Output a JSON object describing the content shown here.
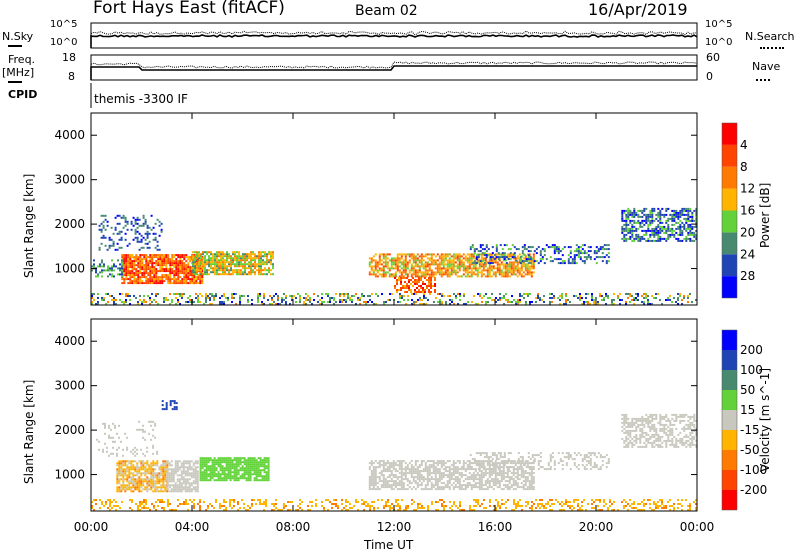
{
  "header": {
    "title": "Fort Hays East (fitACF)",
    "beam": "Beam 02",
    "date": "16/Apr/2019"
  },
  "summary": {
    "nsky_label": "N.Sky",
    "nsearch_label": "N.Search",
    "log_top": "10^5",
    "log_bottom": "10^0",
    "freq_label": "Freq.",
    "freq_unit": "[MHz]",
    "freq_top": "18",
    "freq_bottom": "8",
    "nave_label": "Nave",
    "nave_top": "60",
    "nave_bottom": "0",
    "cpid_label": "CPID",
    "cpid_value": "themis -3300 IF"
  },
  "chart_data": [
    {
      "type": "heatmap",
      "name": "power",
      "ylabel": "Slant Range [km]",
      "colorbar_label": "Power [dB]",
      "xlim": [
        0,
        24
      ],
      "ylim": [
        180,
        4500
      ],
      "yticks": [
        1000,
        2000,
        3000,
        4000
      ],
      "colorbar_ticks": [
        "4",
        "8",
        "12",
        "16",
        "20",
        "24",
        "28"
      ],
      "colors": [
        "#0000ff",
        "#1f44b4",
        "#478a70",
        "#63d23a",
        "#ffb400",
        "#ff7a00",
        "#ff4400",
        "#ff0000"
      ],
      "levels": [
        0,
        4,
        8,
        12,
        16,
        20,
        24,
        28,
        32
      ],
      "clusters": [
        {
          "t": [
            1.2,
            4.4
          ],
          "r": [
            650,
            1300
          ],
          "v": [
            18,
            32
          ],
          "d": 0.85
        },
        {
          "t": [
            4.0,
            7.2
          ],
          "r": [
            850,
            1350
          ],
          "v": [
            10,
            22
          ],
          "d": 0.8
        },
        {
          "t": [
            0.3,
            2.8
          ],
          "r": [
            1400,
            2200
          ],
          "v": [
            2,
            12
          ],
          "d": 0.25
        },
        {
          "t": [
            0.0,
            24.0
          ],
          "r": [
            180,
            420
          ],
          "v": [
            2,
            22
          ],
          "d": 0.3
        },
        {
          "t": [
            11.0,
            17.5
          ],
          "r": [
            800,
            1300
          ],
          "v": [
            14,
            26
          ],
          "d": 0.7
        },
        {
          "t": [
            12.0,
            13.6
          ],
          "r": [
            450,
            800
          ],
          "v": [
            18,
            30
          ],
          "d": 0.6
        },
        {
          "t": [
            15.0,
            20.5
          ],
          "r": [
            1100,
            1550
          ],
          "v": [
            2,
            14
          ],
          "d": 0.35
        },
        {
          "t": [
            21.0,
            24.0
          ],
          "r": [
            1600,
            2350
          ],
          "v": [
            2,
            14
          ],
          "d": 0.6
        },
        {
          "t": [
            0.0,
            1.2
          ],
          "r": [
            800,
            1200
          ],
          "v": [
            4,
            16
          ],
          "d": 0.45
        }
      ]
    },
    {
      "type": "heatmap",
      "name": "velocity",
      "ylabel": "Slant Range [km]",
      "colorbar_label": "Velocity [m s^-1]",
      "xlim": [
        0,
        24
      ],
      "ylim": [
        180,
        4500
      ],
      "yticks": [
        1000,
        2000,
        3000,
        4000
      ],
      "xticks": [
        "00:00",
        "04:00",
        "08:00",
        "12:00",
        "16:00",
        "20:00",
        "00:00"
      ],
      "xlabel": "Time UT",
      "colorbar_ticks": [
        "200",
        "100",
        "50",
        "15",
        "-15",
        "-50",
        "-100",
        "-200"
      ],
      "colors": [
        "#ff0000",
        "#ff4400",
        "#ff7a00",
        "#ffb400",
        "#c8c8be",
        "#63d23a",
        "#478a70",
        "#1f44b4",
        "#0000ff"
      ],
      "levels": [
        -300,
        -200,
        -100,
        -50,
        -15,
        15,
        50,
        100,
        200,
        300
      ],
      "clusters": [
        {
          "t": [
            1.0,
            3.0
          ],
          "r": [
            600,
            1300
          ],
          "v": [
            -60,
            10
          ],
          "d": 0.8
        },
        {
          "t": [
            3.0,
            4.2
          ],
          "r": [
            600,
            1300
          ],
          "v": [
            -10,
            10
          ],
          "d": 0.8
        },
        {
          "t": [
            4.3,
            7.0
          ],
          "r": [
            850,
            1350
          ],
          "v": [
            16,
            45
          ],
          "d": 0.85
        },
        {
          "t": [
            0.0,
            24.0
          ],
          "r": [
            180,
            450
          ],
          "v": [
            -60,
            -16
          ],
          "d": 0.3
        },
        {
          "t": [
            11.0,
            17.5
          ],
          "r": [
            650,
            1300
          ],
          "v": [
            -14,
            14
          ],
          "d": 0.65
        },
        {
          "t": [
            15.0,
            20.5
          ],
          "r": [
            1100,
            1500
          ],
          "v": [
            -14,
            14
          ],
          "d": 0.3
        },
        {
          "t": [
            21.0,
            24.0
          ],
          "r": [
            1600,
            2350
          ],
          "v": [
            -14,
            14
          ],
          "d": 0.55
        },
        {
          "t": [
            0.2,
            2.6
          ],
          "r": [
            1400,
            2200
          ],
          "v": [
            -14,
            14
          ],
          "d": 0.15
        },
        {
          "t": [
            2.8,
            3.4
          ],
          "r": [
            2450,
            2650
          ],
          "v": [
            110,
            180
          ],
          "d": 0.5
        }
      ]
    }
  ]
}
